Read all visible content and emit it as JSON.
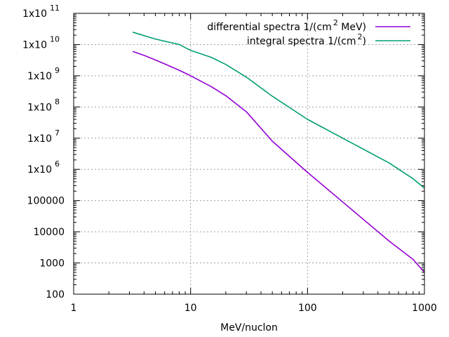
{
  "chart_data": {
    "type": "line",
    "xlabel": "MeV/nuclon",
    "ylabel": "",
    "x_scale": "log",
    "y_scale": "log",
    "xlim": [
      1,
      1000
    ],
    "ylim": [
      100,
      100000000000
    ],
    "grid": true,
    "legend_position": "top-right",
    "x_ticks": [
      {
        "value": 1,
        "label": "1"
      },
      {
        "value": 10,
        "label": "10"
      },
      {
        "value": 100,
        "label": "100"
      },
      {
        "value": 1000,
        "label": "1000"
      }
    ],
    "y_ticks": [
      {
        "value": 100,
        "base": "100",
        "exp": ""
      },
      {
        "value": 1000,
        "base": "1000",
        "exp": ""
      },
      {
        "value": 10000,
        "base": "10000",
        "exp": ""
      },
      {
        "value": 100000,
        "base": "100000",
        "exp": ""
      },
      {
        "value": 1000000,
        "base": "1x10",
        "exp": "6"
      },
      {
        "value": 10000000,
        "base": "1x10",
        "exp": "7"
      },
      {
        "value": 100000000,
        "base": "1x10",
        "exp": "8"
      },
      {
        "value": 1000000000,
        "base": "1x10",
        "exp": "9"
      },
      {
        "value": 10000000000,
        "base": "1x10",
        "exp": "10"
      },
      {
        "value": 100000000000,
        "base": "1x10",
        "exp": "11"
      }
    ],
    "series": [
      {
        "legend_pre": "differential spectra 1/(cm",
        "legend_sup": "2",
        "legend_post": " MeV)",
        "color": "#9400d3",
        "x": [
          3.2,
          4,
          5,
          6,
          8,
          10,
          15,
          20,
          30,
          50,
          100,
          200,
          500,
          800,
          1000
        ],
        "y": [
          6000000000,
          4500000000,
          3200000000,
          2400000000,
          1500000000,
          1000000000,
          450000000,
          230000000,
          70000000,
          8000000,
          800000,
          90000,
          5000,
          1300,
          500
        ]
      },
      {
        "legend_pre": "integral spectra 1/(cm",
        "legend_sup": "2",
        "legend_post": ")",
        "color": "#009e73",
        "x": [
          3.2,
          5,
          8,
          10,
          15,
          20,
          30,
          50,
          100,
          200,
          500,
          800,
          1000
        ],
        "y": [
          25000000000,
          15000000000,
          10000000000,
          6500000000,
          3900000000,
          2300000000,
          900000000,
          220000000,
          40000000,
          10000000,
          1600000,
          500000,
          250000
        ]
      }
    ]
  }
}
